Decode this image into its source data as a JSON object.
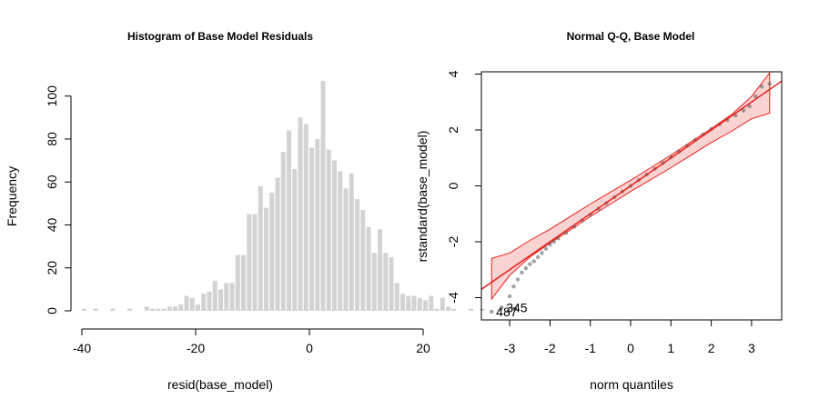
{
  "chart_data": [
    {
      "type": "bar",
      "title": "Histogram of Base Model Residuals",
      "xlabel": "resid(base_model)",
      "ylabel": "Frequency",
      "xlim": [
        -40,
        35
      ],
      "ylim": [
        0,
        110
      ],
      "xticks": [
        "-40",
        "-20",
        "0",
        "20"
      ],
      "yticks": [
        "0",
        "20",
        "40",
        "60",
        "80",
        "100"
      ],
      "bar_color": "#d3d3d3",
      "bin_width": 1,
      "bins": [
        [
          -40,
          1
        ],
        [
          -38,
          1
        ],
        [
          -35,
          1
        ],
        [
          -32,
          1
        ],
        [
          -29,
          2
        ],
        [
          -28,
          1
        ],
        [
          -27,
          1
        ],
        [
          -26,
          1
        ],
        [
          -25,
          2
        ],
        [
          -24,
          2
        ],
        [
          -23,
          3
        ],
        [
          -22,
          7
        ],
        [
          -21,
          6
        ],
        [
          -20,
          3
        ],
        [
          -19,
          8
        ],
        [
          -18,
          9
        ],
        [
          -17,
          14
        ],
        [
          -16,
          10
        ],
        [
          -15,
          13
        ],
        [
          -14,
          13
        ],
        [
          -13,
          26
        ],
        [
          -12,
          26
        ],
        [
          -11,
          45
        ],
        [
          -10,
          45
        ],
        [
          -9,
          58
        ],
        [
          -8,
          48
        ],
        [
          -7,
          55
        ],
        [
          -6,
          62
        ],
        [
          -5,
          74
        ],
        [
          -4,
          84
        ],
        [
          -3,
          66
        ],
        [
          -2,
          90
        ],
        [
          -1,
          87
        ],
        [
          0,
          76
        ],
        [
          1,
          80
        ],
        [
          2,
          107
        ],
        [
          3,
          75
        ],
        [
          4,
          70
        ],
        [
          5,
          65
        ],
        [
          6,
          57
        ],
        [
          7,
          64
        ],
        [
          8,
          52
        ],
        [
          9,
          47
        ],
        [
          10,
          39
        ],
        [
          11,
          27
        ],
        [
          12,
          38
        ],
        [
          13,
          27
        ],
        [
          14,
          25
        ],
        [
          15,
          13
        ],
        [
          16,
          8
        ],
        [
          17,
          7
        ],
        [
          18,
          7
        ],
        [
          19,
          6
        ],
        [
          20,
          5
        ],
        [
          21,
          7
        ],
        [
          22,
          1
        ],
        [
          23,
          6
        ],
        [
          24,
          2
        ],
        [
          25,
          1
        ],
        [
          28,
          1
        ],
        [
          30,
          1
        ],
        [
          33,
          1
        ]
      ]
    },
    {
      "type": "scatter",
      "title": "Normal Q-Q, Base Model",
      "xlabel": "norm quantiles",
      "ylabel": "rstandard(base_model)",
      "xlim": [
        -3.8,
        3.7
      ],
      "ylim": [
        -4.75,
        4.1
      ],
      "xticks": [
        "-3",
        "-2",
        "-1",
        "0",
        "1",
        "2",
        "3"
      ],
      "yticks": [
        "-4",
        "-2",
        "0",
        "2",
        "4"
      ],
      "reference_line": {
        "intercept": 0.0,
        "slope": 1.0
      },
      "envelope": {
        "x": [
          -3.45,
          -3.0,
          -2.5,
          -2.0,
          -1.5,
          -1.0,
          -0.5,
          0.0,
          0.5,
          1.0,
          1.5,
          2.0,
          2.5,
          3.0,
          3.45
        ],
        "upper": [
          -2.6,
          -2.4,
          -1.95,
          -1.55,
          -1.1,
          -0.65,
          -0.22,
          0.2,
          0.65,
          1.1,
          1.58,
          2.05,
          2.55,
          3.2,
          4.05
        ],
        "lower": [
          -4.05,
          -3.2,
          -2.55,
          -2.05,
          -1.58,
          -1.1,
          -0.65,
          -0.2,
          0.22,
          0.65,
          1.1,
          1.55,
          1.95,
          2.4,
          2.6
        ]
      },
      "points": [
        [
          -3.45,
          -4.5
        ],
        [
          -3.2,
          -4.35
        ],
        [
          -3.0,
          -3.95
        ],
        [
          -2.9,
          -3.6
        ],
        [
          -2.8,
          -3.35
        ],
        [
          -2.7,
          -3.1
        ],
        [
          -2.6,
          -2.95
        ],
        [
          -2.5,
          -2.8
        ],
        [
          -2.4,
          -2.7
        ],
        [
          -2.3,
          -2.55
        ],
        [
          -2.2,
          -2.4
        ],
        [
          -2.1,
          -2.25
        ],
        [
          -2.0,
          -2.1
        ],
        [
          -1.9,
          -2.0
        ],
        [
          -1.8,
          -1.88
        ],
        [
          -1.6,
          -1.68
        ],
        [
          -1.4,
          -1.46
        ],
        [
          -1.2,
          -1.24
        ],
        [
          -1.0,
          -1.03
        ],
        [
          -0.8,
          -0.82
        ],
        [
          -0.6,
          -0.62
        ],
        [
          -0.4,
          -0.41
        ],
        [
          -0.2,
          -0.2
        ],
        [
          0.0,
          0.0
        ],
        [
          0.2,
          0.21
        ],
        [
          0.4,
          0.41
        ],
        [
          0.6,
          0.61
        ],
        [
          0.8,
          0.82
        ],
        [
          1.0,
          1.02
        ],
        [
          1.2,
          1.23
        ],
        [
          1.4,
          1.43
        ],
        [
          1.6,
          1.64
        ],
        [
          1.8,
          1.84
        ],
        [
          2.0,
          2.03
        ],
        [
          2.2,
          2.2
        ],
        [
          2.4,
          2.36
        ],
        [
          2.6,
          2.52
        ],
        [
          2.8,
          2.7
        ],
        [
          2.95,
          2.85
        ],
        [
          3.1,
          3.2
        ],
        [
          3.25,
          3.55
        ],
        [
          3.45,
          3.65
        ]
      ],
      "annotations": [
        {
          "label": "345",
          "x": -3.2,
          "y": -4.35
        },
        {
          "label": "487",
          "x": -3.45,
          "y": -4.5
        }
      ],
      "colors": {
        "line": "#e8201a",
        "band_fill": "#f9d2d2",
        "points": "#555555"
      }
    }
  ]
}
